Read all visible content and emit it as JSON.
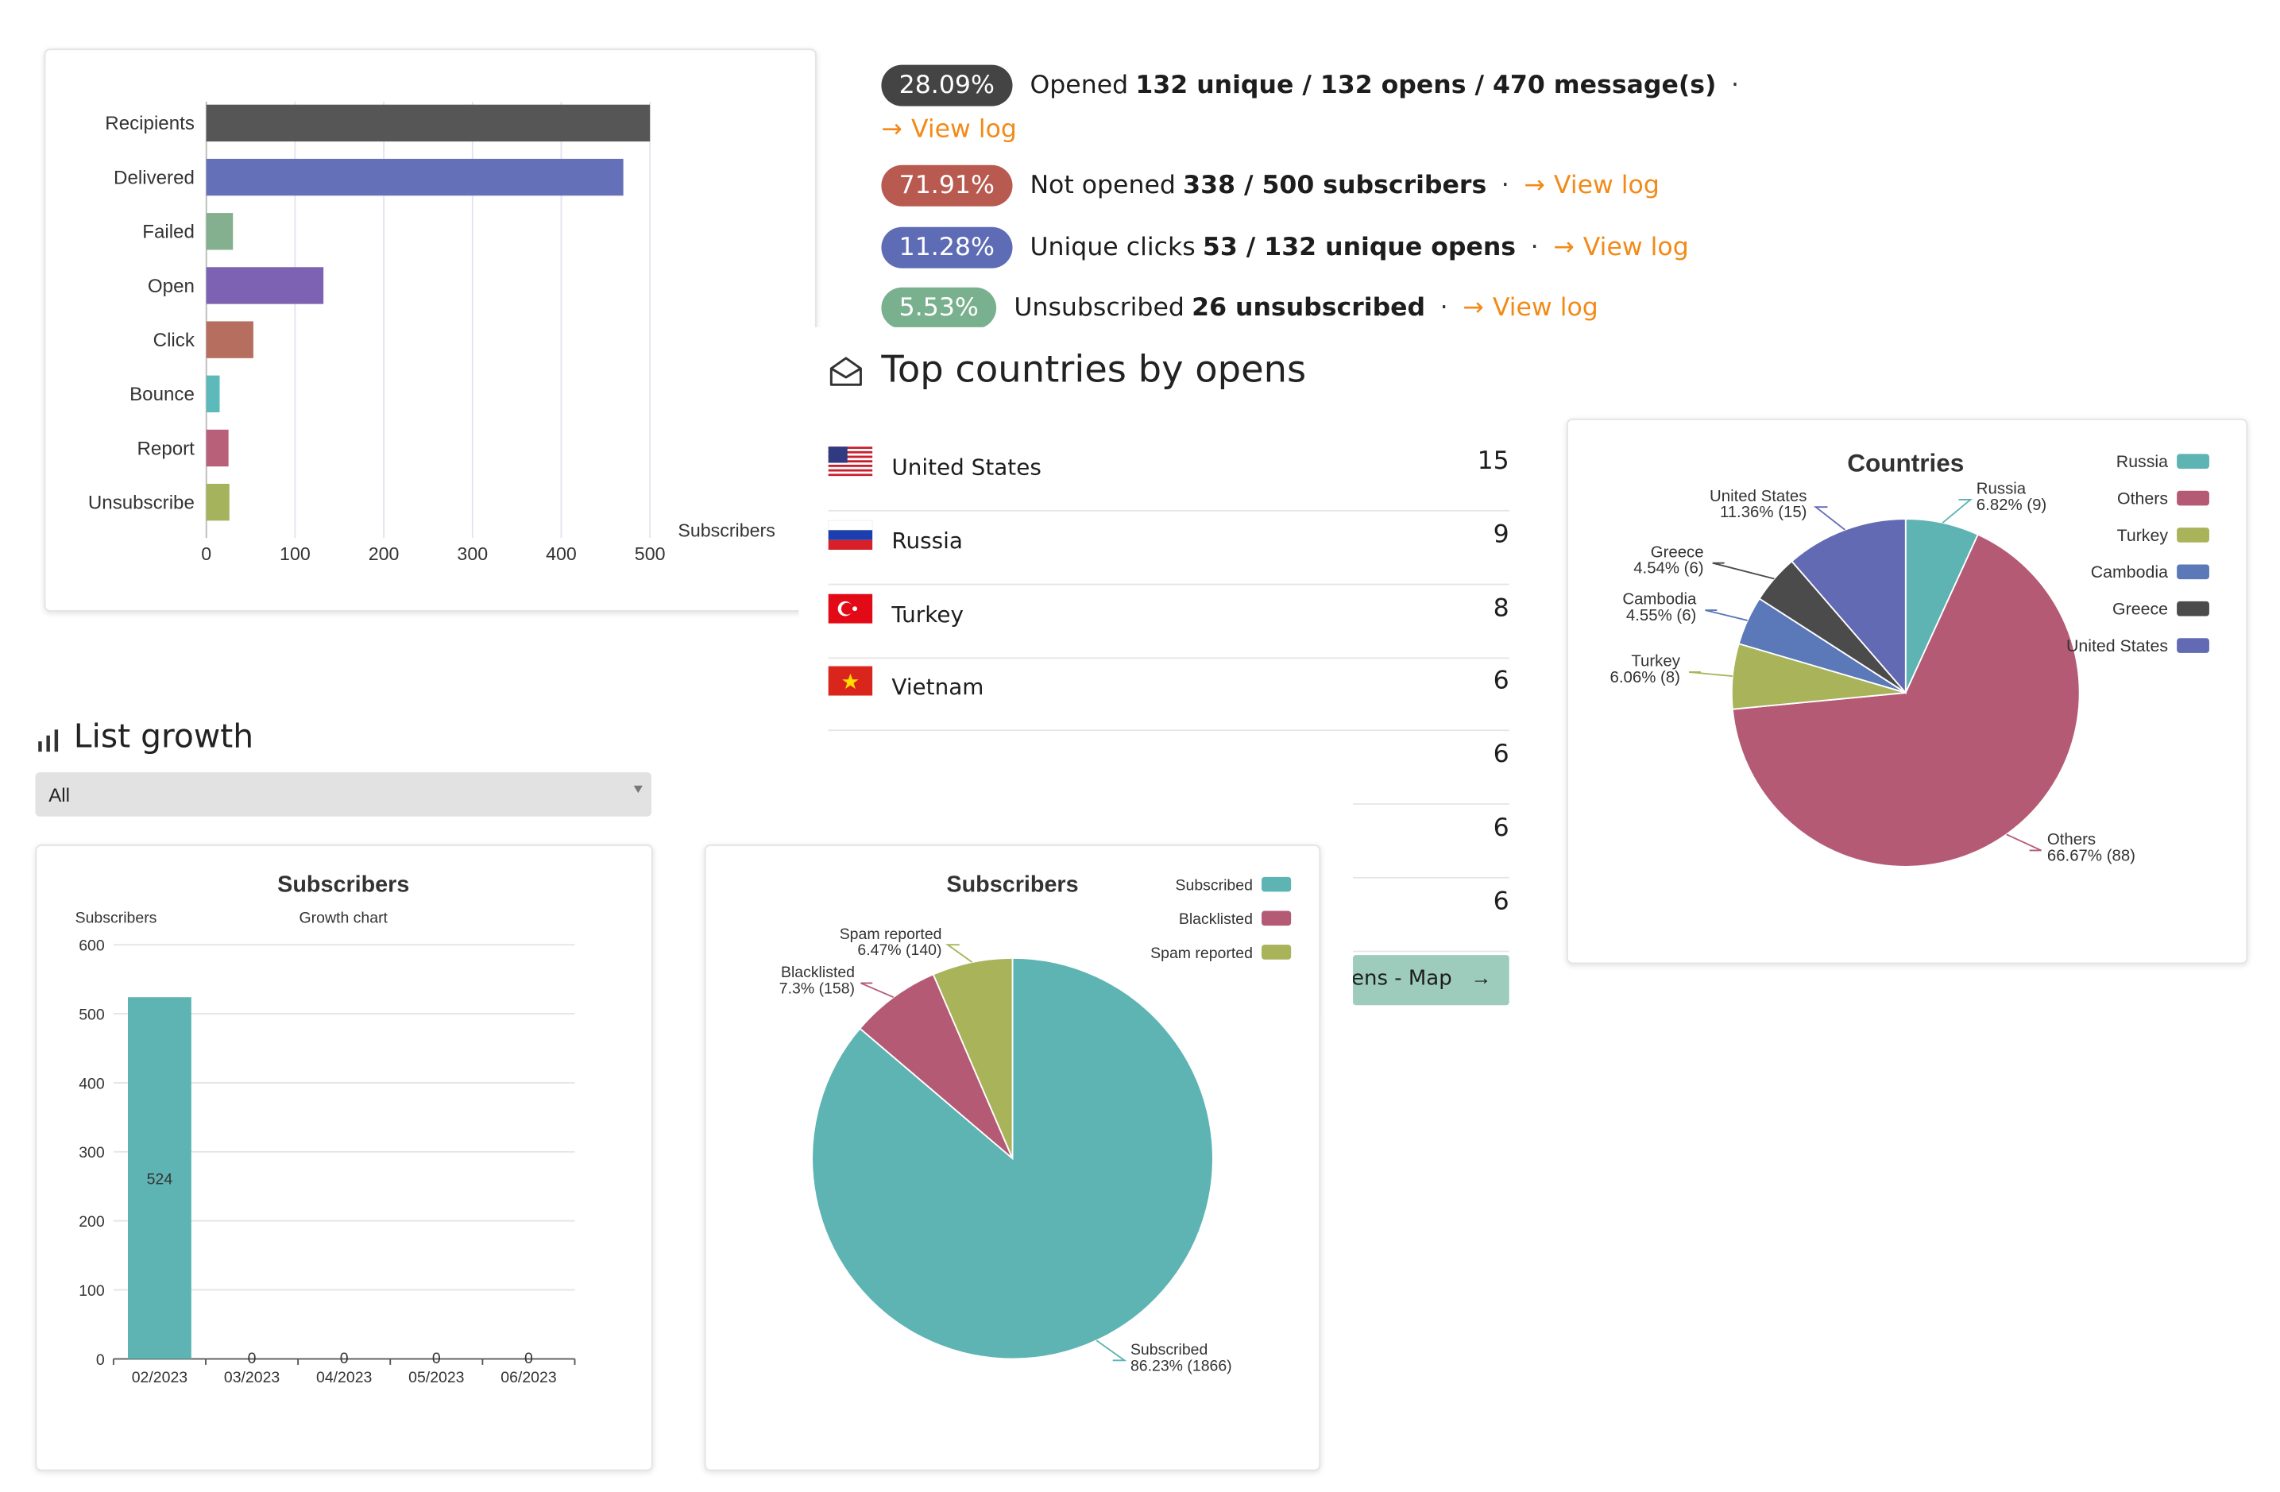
{
  "stats": [
    {
      "percent": "28.09%",
      "color": "#444444",
      "prefix": "Opened",
      "bold": "132 unique / 132 opens / 470 message(s)",
      "link": "View log"
    },
    {
      "percent": "71.91%",
      "color": "#b85a50",
      "prefix": "Not opened",
      "bold": "338 / 500 subscribers",
      "link": "View log"
    },
    {
      "percent": "11.28%",
      "color": "#5e6bb5",
      "prefix": "Unique clicks",
      "bold": "53 / 132 unique opens",
      "link": "View log"
    },
    {
      "percent": "5.53%",
      "color": "#79b08d",
      "prefix": "Unsubscribed",
      "bold": "26 unsubscribed",
      "link": "View log"
    }
  ],
  "top_countries": {
    "title": "Top countries by opens",
    "rows": [
      {
        "name": "United States",
        "count": "15",
        "flag": "us-flag"
      },
      {
        "name": "Russia",
        "count": "9",
        "flag": "ru-flag"
      },
      {
        "name": "Turkey",
        "count": "8",
        "flag": "tr-flag"
      },
      {
        "name": "Vietnam",
        "count": "6",
        "flag": "vn-flag"
      },
      {
        "name": "",
        "count": "6",
        "flag": ""
      },
      {
        "name": "",
        "count": "6",
        "flag": ""
      },
      {
        "name": "",
        "count": "6",
        "flag": ""
      }
    ],
    "map_button": "pens - Map"
  },
  "list_growth": {
    "title": "List growth",
    "select_value": "All"
  },
  "colors": {
    "teal": "#5eb3b3",
    "crimson": "#b55a75",
    "olive": "#a8b35a",
    "blue": "#5b78b8",
    "dark": "#4b4b4b",
    "indigo": "#626ab4",
    "orange": "#f28a18"
  },
  "chart_data": [
    {
      "type": "bar",
      "orientation": "horizontal",
      "categories": [
        "Recipients",
        "Delivered",
        "Failed",
        "Open",
        "Click",
        "Bounce",
        "Report",
        "Unsubscribe"
      ],
      "values": [
        500,
        470,
        30,
        132,
        53,
        15,
        25,
        26
      ],
      "bar_colors": [
        "#565656",
        "#6470b8",
        "#85b08f",
        "#7d62b3",
        "#b66e5e",
        "#5dbaba",
        "#b8607a",
        "#a6b35d"
      ],
      "xlabel": "Subscribers",
      "xticks": [
        0,
        100,
        200,
        300,
        400,
        500
      ],
      "xlim": [
        0,
        500
      ]
    },
    {
      "type": "pie",
      "title": "Countries",
      "slices": [
        {
          "name": "Russia",
          "percent": "6.82%",
          "count": 9,
          "value": 6.82,
          "color": "#5eb3b3"
        },
        {
          "name": "Others",
          "percent": "66.67%",
          "count": 88,
          "value": 66.67,
          "color": "#b55a75"
        },
        {
          "name": "Turkey",
          "percent": "6.06%",
          "count": 8,
          "value": 6.06,
          "color": "#a8b35a"
        },
        {
          "name": "Cambodia",
          "percent": "4.55%",
          "count": 6,
          "value": 4.55,
          "color": "#5b78b8"
        },
        {
          "name": "Greece",
          "percent": "4.54%",
          "count": 6,
          "value": 4.54,
          "color": "#4b4b4b"
        },
        {
          "name": "United States",
          "percent": "11.36%",
          "count": 15,
          "value": 11.36,
          "color": "#626ab4"
        }
      ],
      "legend": "top-right"
    },
    {
      "type": "bar",
      "title": "Subscribers",
      "subtitle": "Growth chart",
      "ylabel": "Subscribers",
      "categories": [
        "02/2023",
        "03/2023",
        "04/2023",
        "05/2023",
        "06/2023"
      ],
      "values": [
        524,
        0,
        0,
        0,
        0
      ],
      "ylim": [
        0,
        600
      ],
      "yticks": [
        0,
        100,
        200,
        300,
        400,
        500,
        600
      ],
      "bar_color": "#5eb3b3"
    },
    {
      "type": "pie",
      "title": "Subscribers",
      "slices": [
        {
          "name": "Subscribed",
          "percent": "86.23%",
          "count": 1866,
          "value": 86.23,
          "color": "#5eb3b3"
        },
        {
          "name": "Blacklisted",
          "percent": "7.3%",
          "count": 158,
          "value": 7.3,
          "color": "#b55a75"
        },
        {
          "name": "Spam reported",
          "percent": "6.47%",
          "count": 140,
          "value": 6.47,
          "color": "#a8b35a"
        }
      ],
      "legend": "top-right"
    }
  ]
}
